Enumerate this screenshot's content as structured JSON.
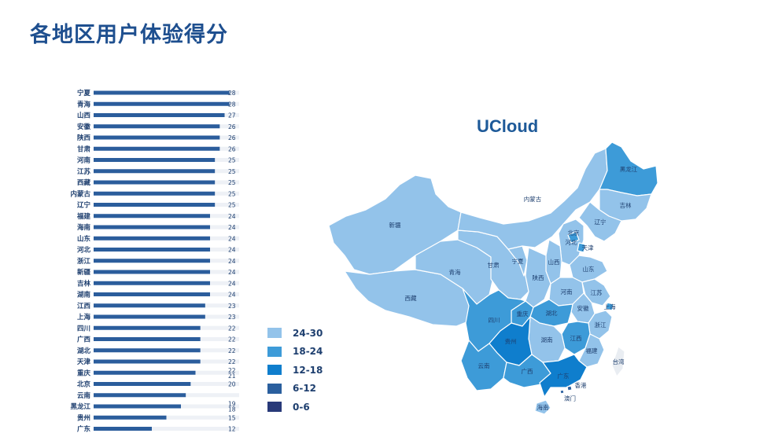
{
  "page_title": "各地区用户体验得分",
  "chart_data": [
    {
      "type": "bar",
      "orientation": "horizontal",
      "categories": [
        "宁夏",
        "青海",
        "山西",
        "安徽",
        "陕西",
        "甘肃",
        "河南",
        "江苏",
        "西藏",
        "内蒙古",
        "辽宁",
        "福建",
        "海南",
        "山东",
        "河北",
        "浙江",
        "新疆",
        "吉林",
        "湖南",
        "江西",
        "上海",
        "四川",
        "广西",
        "湖北",
        "天津",
        "重庆",
        "北京",
        "云南",
        "黑龙江",
        "贵州",
        "广东"
      ],
      "values": [
        28,
        28,
        27,
        26,
        26,
        26,
        25,
        25,
        25,
        25,
        25,
        24,
        24,
        24,
        24,
        24,
        24,
        24,
        24,
        23,
        23,
        22,
        22,
        22,
        22,
        21,
        20,
        19,
        18,
        15,
        12
      ],
      "value_labels": [
        "28",
        "28",
        "27",
        "26",
        "26",
        "26",
        "25",
        "25",
        "25",
        "25",
        "25",
        "24",
        "24",
        "24",
        "24",
        "24",
        "24",
        "24",
        "24",
        "23",
        "23",
        "22",
        "22",
        "22",
        "22",
        "22\n21",
        "20",
        "",
        "19\n18",
        "15",
        "12"
      ],
      "xlim": [
        0,
        30
      ],
      "bar_color": "#2b5d9c",
      "track_color": "#eef1f6"
    },
    {
      "type": "choropleth-map",
      "title": "UCloud",
      "legend": [
        {
          "label": "24-30",
          "color": "#93c3ea"
        },
        {
          "label": "18-24",
          "color": "#3d9bd8"
        },
        {
          "label": "12-18",
          "color": "#0f7ecd"
        },
        {
          "label": "6-12",
          "color": "#2a5f9e"
        },
        {
          "label": "0-6",
          "color": "#283a79"
        }
      ],
      "regions": [
        {
          "name": "黑龙江",
          "value": 18
        },
        {
          "name": "吉林",
          "value": 24
        },
        {
          "name": "辽宁",
          "value": 25
        },
        {
          "name": "北京",
          "value": 20
        },
        {
          "name": "天津",
          "value": 22
        },
        {
          "name": "河北",
          "value": 24
        },
        {
          "name": "内蒙古",
          "value": 25
        },
        {
          "name": "新疆",
          "value": 24
        },
        {
          "name": "西藏",
          "value": 25
        },
        {
          "name": "青海",
          "value": 28
        },
        {
          "name": "甘肃",
          "value": 26
        },
        {
          "name": "宁夏",
          "value": 28
        },
        {
          "name": "陕西",
          "value": 26
        },
        {
          "name": "山西",
          "value": 27
        },
        {
          "name": "山东",
          "value": 24
        },
        {
          "name": "河南",
          "value": 25
        },
        {
          "name": "江苏",
          "value": 25
        },
        {
          "name": "上海",
          "value": 23
        },
        {
          "name": "安徽",
          "value": 26
        },
        {
          "name": "四川",
          "value": 22
        },
        {
          "name": "重庆",
          "value": 21
        },
        {
          "name": "湖北",
          "value": 22
        },
        {
          "name": "浙江",
          "value": 24
        },
        {
          "name": "湖南",
          "value": 24
        },
        {
          "name": "江西",
          "value": 23
        },
        {
          "name": "贵州",
          "value": 15
        },
        {
          "name": "福建",
          "value": 24
        },
        {
          "name": "云南",
          "value": 19
        },
        {
          "name": "广西",
          "value": 22
        },
        {
          "name": "广东",
          "value": 12
        },
        {
          "name": "香港",
          "value": null
        },
        {
          "name": "澳门",
          "value": null
        },
        {
          "name": "台湾",
          "value": null
        },
        {
          "name": "海南",
          "value": 24
        }
      ]
    }
  ]
}
